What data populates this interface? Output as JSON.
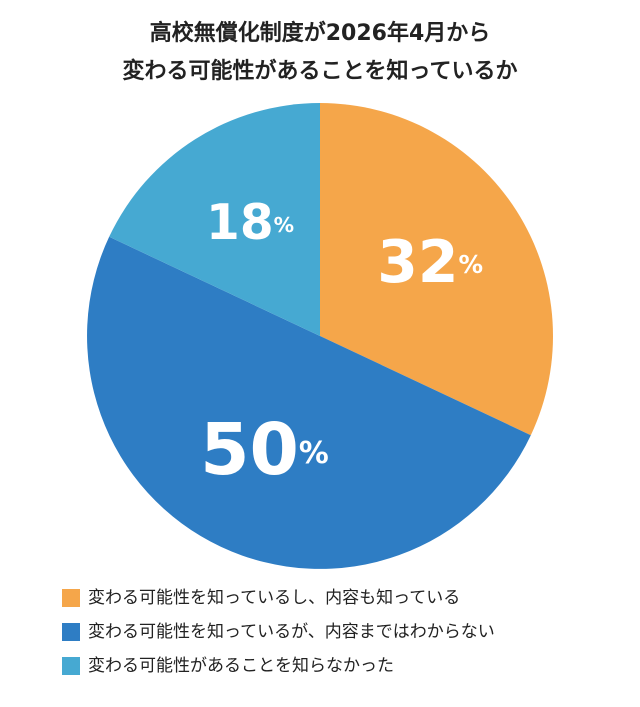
{
  "chart_data": {
    "type": "pie",
    "title": [
      "高校無償化制度が2026年4月から",
      "変わる可能性があることを知っているか"
    ],
    "categories": [
      "変わる可能性を知っているし、内容も知っている",
      "変わる可能性を知っているが、内容まではわからない",
      "変わる可能性があることを知らなかった"
    ],
    "values": [
      32,
      50,
      18
    ],
    "value_labels": [
      "32%",
      "50%",
      "18%"
    ],
    "colors": [
      "#f5a64a",
      "#2e7dc4",
      "#46a9d2"
    ],
    "legend": "bottom"
  }
}
